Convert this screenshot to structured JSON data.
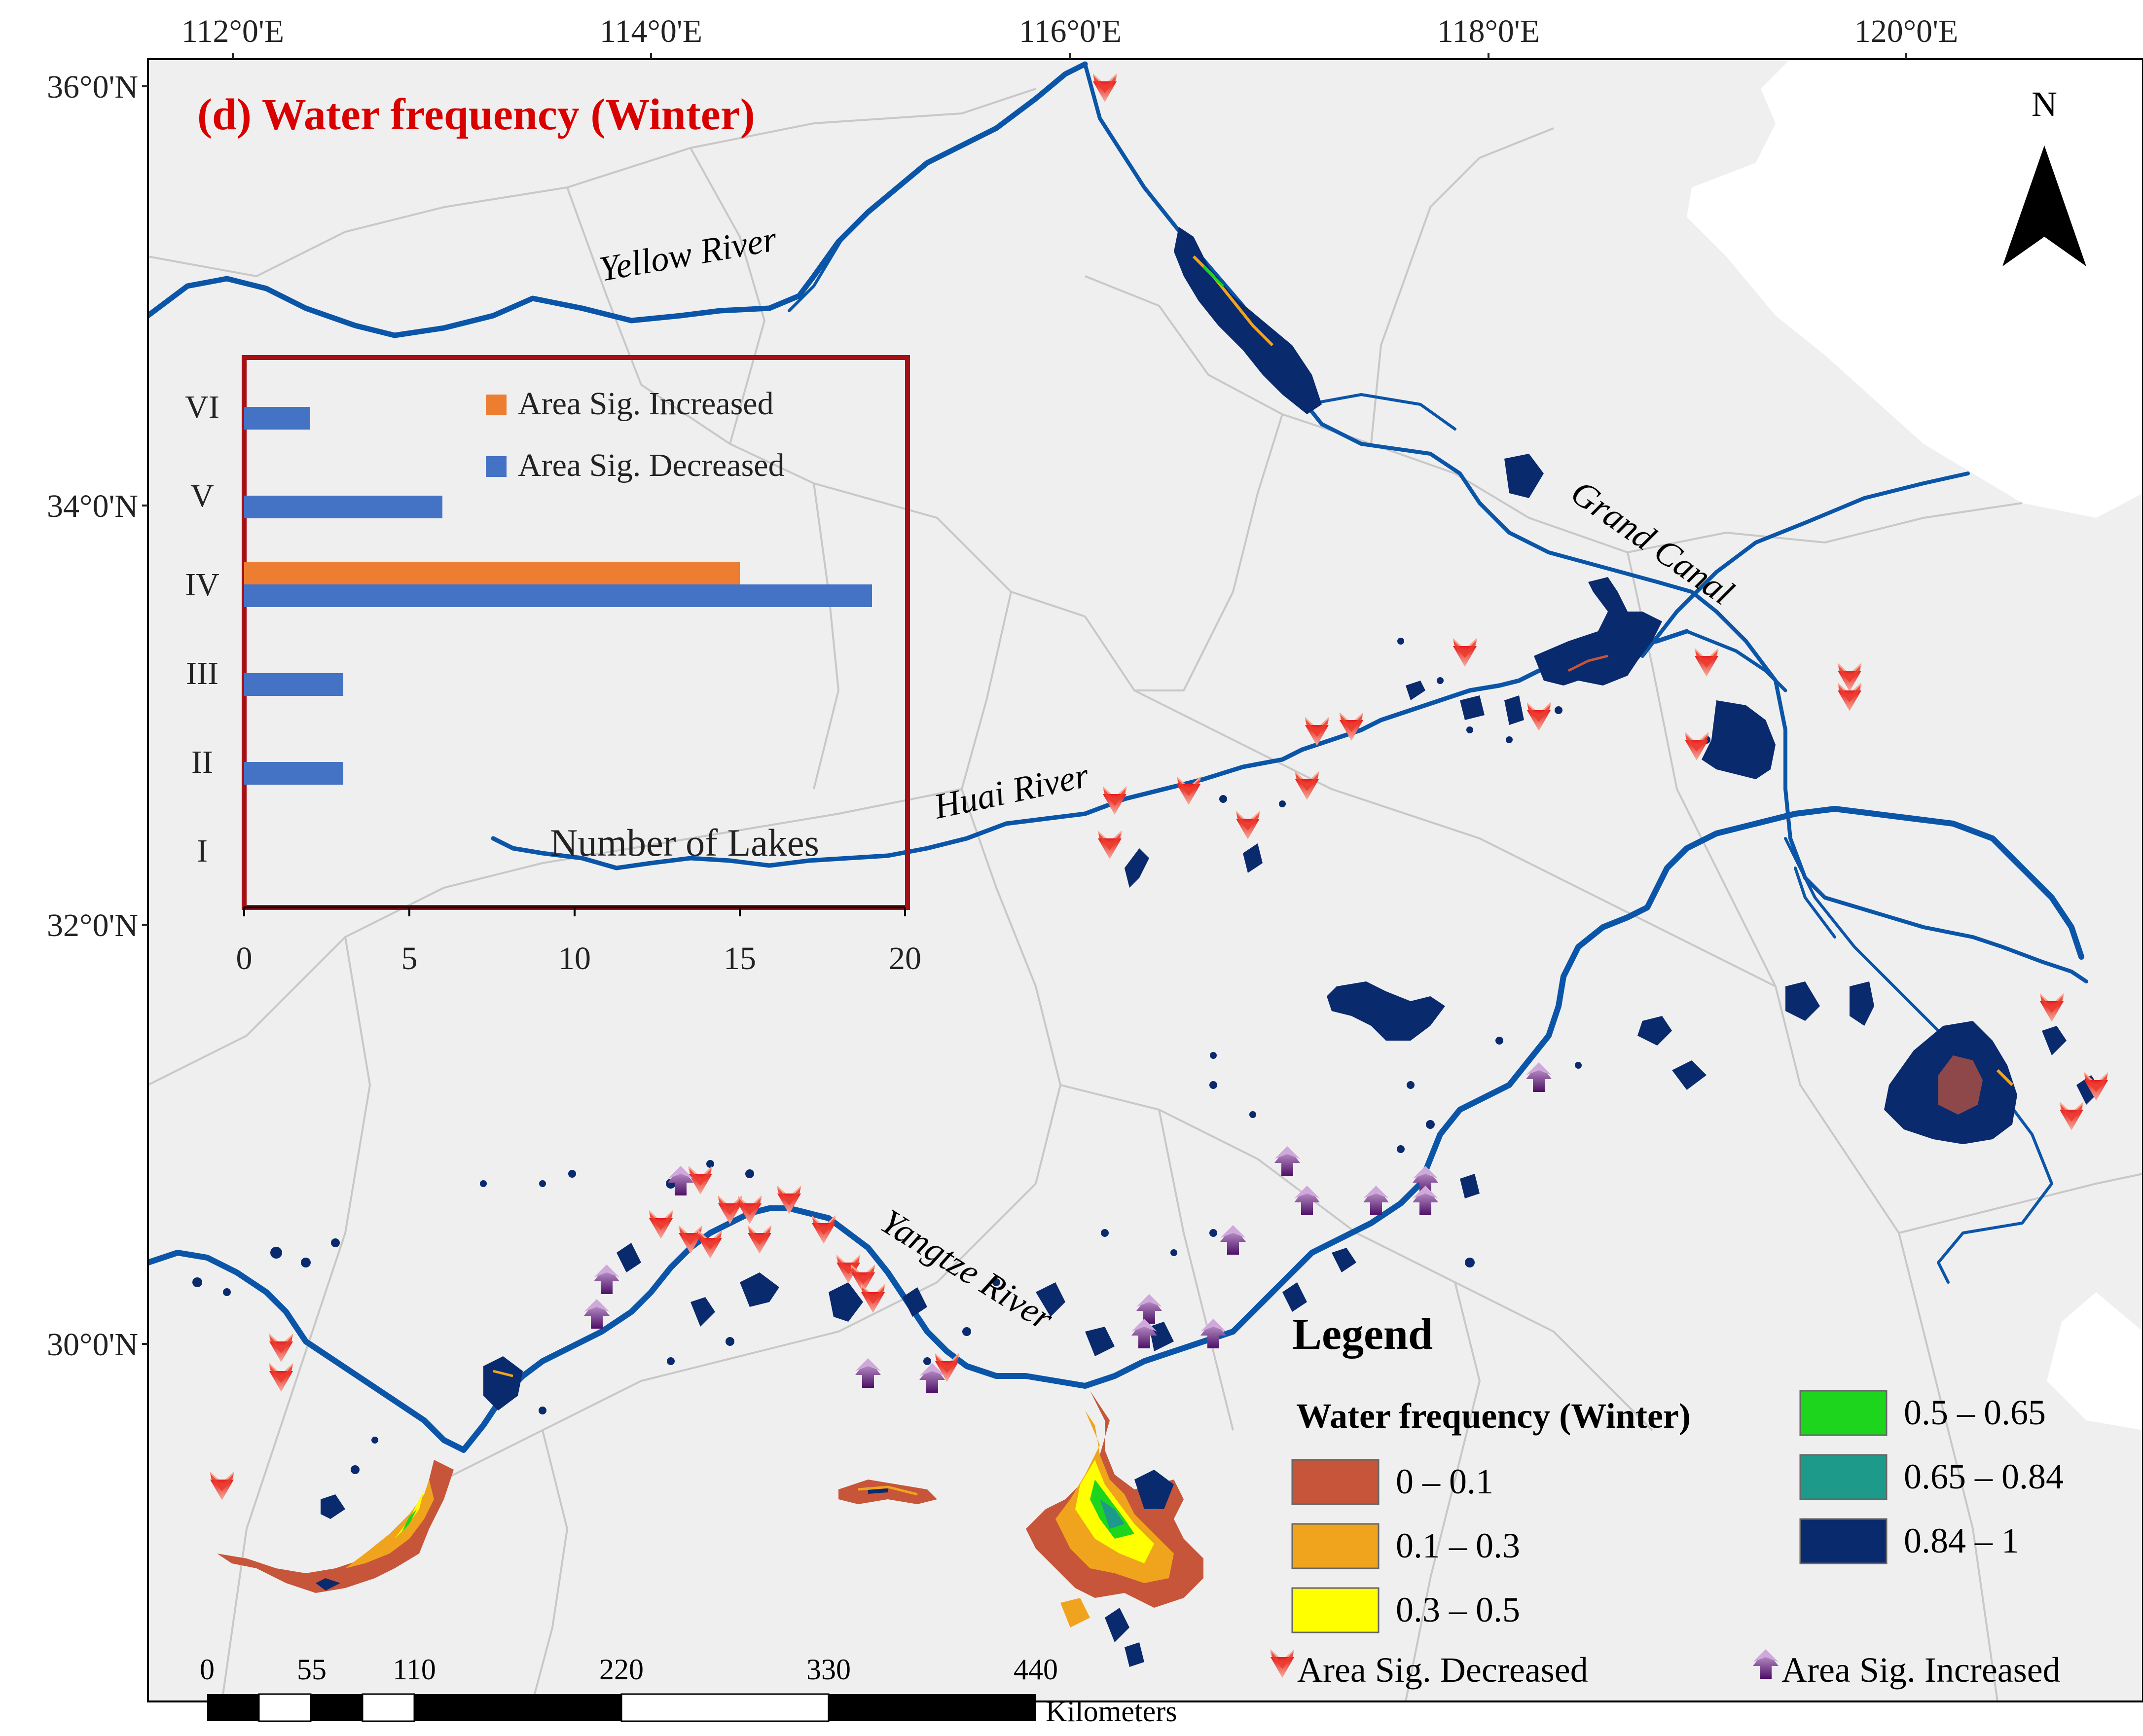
{
  "title": "(d) Water frequency (Winter)",
  "colors": {
    "title": "#d90000",
    "river": "#0b55a8",
    "lake_full": "#0a2a6e",
    "land": "#efefef",
    "sea": "#ffffff",
    "admin_border": "#c8c8c8",
    "inset_frame": "#a50f15",
    "bar_increased": "#ed7d31",
    "bar_decreased": "#4472c4",
    "marker_decreased": "#e8302a",
    "marker_increased": "#5a1470"
  },
  "graticule": {
    "longitudes": [
      "112°0'E",
      "114°0'E",
      "116°0'E",
      "118°0'E",
      "120°0'E"
    ],
    "latitudes": [
      "36°0'N",
      "34°0'N",
      "32°0'N",
      "30°0'N"
    ]
  },
  "north_arrow": {
    "label": "N"
  },
  "river_labels": {
    "yellow": "Yellow River",
    "grand_canal": "Grand Canal",
    "huai": "Huai River",
    "yangtze": "Yangtze River"
  },
  "inset_chart": {
    "xlabel": "Number of Lakes",
    "legend": [
      "Area Sig. Increased",
      "Area Sig. Decreased"
    ],
    "categories": [
      "VI",
      "V",
      "IV",
      "III",
      "II",
      "I"
    ],
    "xticks": [
      "0",
      "5",
      "10",
      "15",
      "20"
    ]
  },
  "chart_data": {
    "type": "bar",
    "orientation": "horizontal",
    "categories": [
      "VI",
      "V",
      "IV",
      "III",
      "II",
      "I"
    ],
    "series": [
      {
        "name": "Area Sig. Increased",
        "color": "#ed7d31",
        "values": [
          0,
          0,
          15,
          0,
          0,
          0
        ]
      },
      {
        "name": "Area Sig. Decreased",
        "color": "#4472c4",
        "values": [
          2,
          6,
          19,
          3,
          3,
          0
        ]
      }
    ],
    "xlabel": "Number of Lakes",
    "xlim": [
      0,
      20
    ],
    "xticks": [
      0,
      5,
      10,
      15,
      20
    ],
    "legend_position": "top-right",
    "grid": false
  },
  "legend": {
    "title": "Legend",
    "subtitle": "Water frequency (Winter)",
    "classes": [
      {
        "label": "0 – 0.1",
        "color": "#c6553a"
      },
      {
        "label": "0.1 – 0.3",
        "color": "#f0a41d"
      },
      {
        "label": "0.3 – 0.5",
        "color": "#ffff00"
      },
      {
        "label": "0.5 – 0.65",
        "color": "#1ed51e"
      },
      {
        "label": "0.65 – 0.84",
        "color": "#1e9a8a"
      },
      {
        "label": "0.84 – 1",
        "color": "#0a2a6e"
      }
    ],
    "decreased_label": "Area Sig. Decreased",
    "increased_label": "Area Sig. Increased"
  },
  "scale_bar": {
    "labels": [
      "0",
      "55",
      "110",
      "220",
      "330",
      "440"
    ],
    "unit": "Kilometers"
  }
}
